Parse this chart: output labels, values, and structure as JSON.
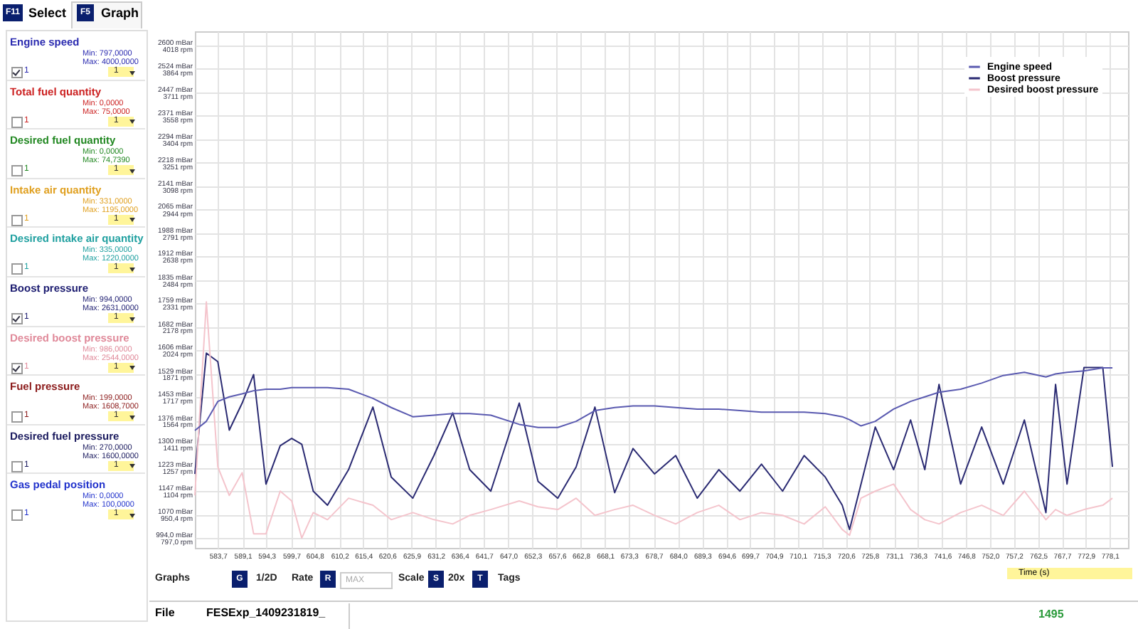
{
  "chart_data": [
    {
      "type": "other",
      "annotations": [
        "F11",
        "Select",
        "F5",
        "Graph",
        "Engine speed",
        "Min: 797,0000",
        "Max: 4000,0000",
        "1",
        "1",
        "Total fuel quantity",
        "Min: 0,0000",
        "Max: 75,0000",
        "1",
        "1",
        "Desired fuel quantity",
        "Min: 0,0000",
        "Max: 74,7390",
        "1",
        "1",
        "Intake air quantity",
        "Min: 331,0000",
        "Max: 1195,0000",
        "1",
        "1",
        "Desired intake air quantity",
        "Min: 335,0000",
        "Max: 1220,0000",
        "1",
        "1",
        "Boost pressure",
        "Min: 994,0000",
        "Max: 2631,0000",
        "1",
        "1",
        "Desired boost pressure",
        "Min: 986,0000",
        "Max: 2544,0000",
        "1",
        "1",
        "Fuel pressure",
        "Min: 199,0000",
        "Max: 1608,7000",
        "1",
        "1",
        "Desired fuel pressure",
        "Min: 270,0000",
        "Max: 1600,0000",
        "1",
        "1",
        "Gas pedal position",
        "Min: 0,0000",
        "Max: 100,0000",
        "1",
        "1"
      ]
    },
    {
      "type": "line",
      "xlabel": "Time (s)",
      "legend": "top right",
      "grid": true,
      "x": [
        578.7,
        581.2,
        583.7,
        586.2,
        589.0,
        591.5,
        594.2,
        597.3,
        599.8,
        602.0,
        604.5,
        607.6,
        612.2,
        617.5,
        621.5,
        626.2,
        630.8,
        634.9,
        638.6,
        643.2,
        649.4,
        653.5,
        657.8,
        661.8,
        665.9,
        670.2,
        674.2,
        678.9,
        683.5,
        688.2,
        692.9,
        697.5,
        702.2,
        706.8,
        711.5,
        716.1,
        719.8,
        721.4,
        723.9,
        727.0,
        731.0,
        734.7,
        737.8,
        740.9,
        745.6,
        750.2,
        754.9,
        759.5,
        764.2,
        766.3,
        768.8,
        772.5,
        776.6,
        778.7
      ],
      "xlim": [
        578.7,
        782.1
      ],
      "xticks": [
        {
          "value": 583.7,
          "label": "583,7"
        },
        {
          "value": 589.1,
          "label": "589,1"
        },
        {
          "value": 594.3,
          "label": "594,3"
        },
        {
          "value": 599.7,
          "label": "599,7"
        },
        {
          "value": 604.8,
          "label": "604,8"
        },
        {
          "value": 610.2,
          "label": "610,2"
        },
        {
          "value": 615.4,
          "label": "615,4"
        },
        {
          "value": 620.6,
          "label": "620,6"
        },
        {
          "value": 625.9,
          "label": "625,9"
        },
        {
          "value": 631.2,
          "label": "631,2"
        },
        {
          "value": 636.4,
          "label": "636,4"
        },
        {
          "value": 641.7,
          "label": "641,7"
        },
        {
          "value": 647.0,
          "label": "647,0"
        },
        {
          "value": 652.3,
          "label": "652,3"
        },
        {
          "value": 657.6,
          "label": "657,6"
        },
        {
          "value": 662.8,
          "label": "662,8"
        },
        {
          "value": 668.1,
          "label": "668,1"
        },
        {
          "value": 673.3,
          "label": "673,3"
        },
        {
          "value": 678.7,
          "label": "678,7"
        },
        {
          "value": 684.0,
          "label": "684,0"
        },
        {
          "value": 689.3,
          "label": "689,3"
        },
        {
          "value": 694.6,
          "label": "694,6"
        },
        {
          "value": 699.7,
          "label": "699,7"
        },
        {
          "value": 704.9,
          "label": "704,9"
        },
        {
          "value": 710.1,
          "label": "710,1"
        },
        {
          "value": 715.3,
          "label": "715,3"
        },
        {
          "value": 720.6,
          "label": "720,6"
        },
        {
          "value": 725.8,
          "label": "725,8"
        },
        {
          "value": 731.1,
          "label": "731,1"
        },
        {
          "value": 736.3,
          "label": "736,3"
        },
        {
          "value": 741.6,
          "label": "741,6"
        },
        {
          "value": 746.8,
          "label": "746,8"
        },
        {
          "value": 752.0,
          "label": "752,0"
        },
        {
          "value": 757.2,
          "label": "757,2"
        },
        {
          "value": 762.5,
          "label": "762,5"
        },
        {
          "value": 767.7,
          "label": "767,7"
        },
        {
          "value": 772.9,
          "label": "772,9"
        },
        {
          "value": 778.1,
          "label": "778,1"
        }
      ],
      "ylim": [
        962,
        2646
      ],
      "yticks": [
        {
          "value": 994,
          "label": "994,0 mBar"
        },
        {
          "value": 1070,
          "label": "1070 mBar"
        },
        {
          "value": 1147,
          "label": "1147 mBar"
        },
        {
          "value": 1223,
          "label": "1223 mBar"
        },
        {
          "value": 1300,
          "label": "1300 mBar"
        },
        {
          "value": 1376,
          "label": "1376 mBar"
        },
        {
          "value": 1453,
          "label": "1453 mBar"
        },
        {
          "value": 1529,
          "label": "1529 mBar"
        },
        {
          "value": 1606,
          "label": "1606 mBar"
        },
        {
          "value": 1682,
          "label": "1682 mBar"
        },
        {
          "value": 1759,
          "label": "1759 mBar"
        },
        {
          "value": 1835,
          "label": "1835 mBar"
        },
        {
          "value": 1912,
          "label": "1912 mBar"
        },
        {
          "value": 1988,
          "label": "1988 mBar"
        },
        {
          "value": 2065,
          "label": "2065 mBar"
        },
        {
          "value": 2141,
          "label": "2141 mBar"
        },
        {
          "value": 2218,
          "label": "2218 mBar"
        },
        {
          "value": 2294,
          "label": "2294 mBar"
        },
        {
          "value": 2371,
          "label": "2371 mBar"
        },
        {
          "value": 2447,
          "label": "2447 mBar"
        },
        {
          "value": 2524,
          "label": "2524 mBar"
        },
        {
          "value": 2600,
          "label": "2600 mBar"
        }
      ],
      "y2lim": [
        732,
        4111
      ],
      "y2ticks": [
        {
          "value": 797.0,
          "label": "797,0 rpm"
        },
        {
          "value": 950.4,
          "label": "950,4 rpm"
        },
        {
          "value": 1104,
          "label": "1104 rpm"
        },
        {
          "value": 1257,
          "label": "1257 rpm"
        },
        {
          "value": 1411,
          "label": "1411 rpm"
        },
        {
          "value": 1564,
          "label": "1564 rpm"
        },
        {
          "value": 1717,
          "label": "1717 rpm"
        },
        {
          "value": 1871,
          "label": "1871 rpm"
        },
        {
          "value": 2024,
          "label": "2024 rpm"
        },
        {
          "value": 2178,
          "label": "2178 rpm"
        },
        {
          "value": 2331,
          "label": "2331 rpm"
        },
        {
          "value": 2484,
          "label": "2484 rpm"
        },
        {
          "value": 2638,
          "label": "2638 rpm"
        },
        {
          "value": 2791,
          "label": "2791 rpm"
        },
        {
          "value": 2944,
          "label": "2944 rpm"
        },
        {
          "value": 3098,
          "label": "3098 rpm"
        },
        {
          "value": 3251,
          "label": "3251 rpm"
        },
        {
          "value": 3404,
          "label": "3404 rpm"
        },
        {
          "value": 3558,
          "label": "3558 rpm"
        },
        {
          "value": 3711,
          "label": "3711 rpm"
        },
        {
          "value": 3864,
          "label": "3864 rpm"
        },
        {
          "value": 4018,
          "label": "4018 rpm"
        }
      ],
      "series": [
        {
          "name": "Engine speed",
          "color": "#5a5ab0",
          "axis": "y2",
          "values": [
            1500,
            1560,
            1690,
            1720,
            1740,
            1760,
            1770,
            1770,
            1780,
            1780,
            1780,
            1780,
            1770,
            1710,
            1650,
            1590,
            1600,
            1610,
            1610,
            1600,
            1540,
            1520,
            1520,
            1560,
            1630,
            1650,
            1660,
            1660,
            1650,
            1640,
            1640,
            1630,
            1620,
            1620,
            1620,
            1610,
            1590,
            1570,
            1530,
            1560,
            1640,
            1690,
            1720,
            1750,
            1770,
            1810,
            1860,
            1880,
            1850,
            1870,
            1880,
            1890,
            1910,
            1910
          ]
        },
        {
          "name": "Boost pressure",
          "color": "#2a2a72",
          "values": [
            1203,
            1597,
            1569,
            1346,
            1434,
            1527,
            1170,
            1295,
            1319,
            1300,
            1147,
            1101,
            1217,
            1421,
            1193,
            1124,
            1263,
            1402,
            1217,
            1147,
            1434,
            1179,
            1124,
            1226,
            1421,
            1142,
            1286,
            1203,
            1263,
            1124,
            1217,
            1147,
            1235,
            1147,
            1263,
            1193,
            1101,
            1022,
            1170,
            1356,
            1217,
            1379,
            1217,
            1495,
            1170,
            1356,
            1170,
            1379,
            1077,
            1495,
            1170,
            1550,
            1550,
            1226
          ]
        },
        {
          "name": "Desired boost pressure",
          "color": "#f4c4cc",
          "values": [
            1133,
            1764,
            1226,
            1133,
            1207,
            1008,
            1008,
            1147,
            1115,
            994,
            1077,
            1054,
            1124,
            1101,
            1054,
            1077,
            1054,
            1040,
            1068,
            1087,
            1115,
            1096,
            1087,
            1124,
            1068,
            1087,
            1101,
            1068,
            1040,
            1077,
            1101,
            1054,
            1077,
            1068,
            1040,
            1096,
            1022,
            1003,
            1124,
            1147,
            1170,
            1087,
            1054,
            1040,
            1077,
            1101,
            1068,
            1147,
            1054,
            1087,
            1068,
            1087,
            1101,
            1124
          ]
        }
      ]
    },
    {
      "type": "other",
      "annotations": [
        "Graphs",
        "G",
        "1/2D",
        "Rate",
        "R",
        "MAX",
        "Scale",
        "S",
        "20x",
        "T",
        "Tags",
        "File",
        "FESExp_1409231819_",
        "1495"
      ]
    }
  ]
}
